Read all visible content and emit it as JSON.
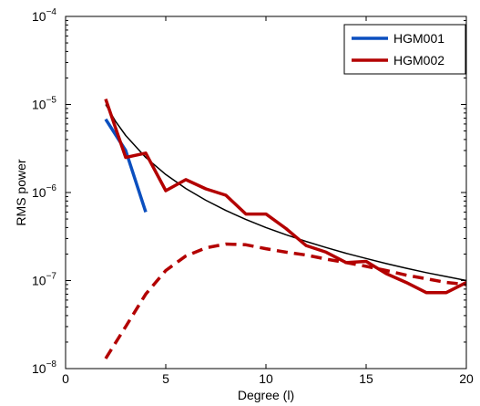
{
  "chart_data": {
    "type": "line",
    "xlabel": "Degree (l)",
    "ylabel": "RMS power",
    "xlim": [
      0,
      20
    ],
    "ylim": [
      1e-08,
      0.0001
    ],
    "yscale": "log",
    "x_ticks": [
      0,
      5,
      10,
      15,
      20
    ],
    "x_tick_labels": [
      "0",
      "5",
      "10",
      "15",
      "20"
    ],
    "y_ticks": [
      1e-08,
      1e-07,
      1e-06,
      1e-05,
      0.0001
    ],
    "y_tick_bases": [
      "10",
      "10",
      "10",
      "10",
      "10"
    ],
    "y_tick_exponents": [
      "−8",
      "−7",
      "−6",
      "−5",
      "−4"
    ],
    "grid": false,
    "legend_position": "top-right",
    "series": [
      {
        "name": "HGM001",
        "color": "#0b4fbf",
        "style": "solid",
        "x": [
          2,
          3,
          4
        ],
        "y": [
          6.8e-06,
          3e-06,
          6e-07
        ]
      },
      {
        "name": "HGM002",
        "color": "#b30000",
        "style": "solid",
        "x": [
          2,
          3,
          4,
          5,
          6,
          7,
          8,
          9,
          10,
          11,
          12,
          13,
          14,
          15,
          16,
          17,
          18,
          19,
          20
        ],
        "y": [
          1.15e-05,
          2.5e-06,
          2.8e-06,
          1.05e-06,
          1.4e-06,
          1.1e-06,
          9.3e-07,
          5.7e-07,
          5.7e-07,
          3.9e-07,
          2.5e-07,
          2.1e-07,
          1.6e-07,
          1.65e-07,
          1.2e-07,
          9.5e-08,
          7.3e-08,
          7.3e-08,
          9.5e-08
        ]
      },
      {
        "color": "#000000",
        "style": "solid",
        "x": [
          2,
          2.5,
          3,
          4,
          5,
          6,
          7,
          8,
          9,
          10,
          11,
          12,
          13,
          14,
          15,
          16,
          17,
          18,
          19,
          20
        ],
        "y": [
          1e-05,
          6.4e-06,
          4.44e-06,
          2.5e-06,
          1.6e-06,
          1.11e-06,
          8.16e-07,
          6.25e-07,
          4.94e-07,
          4e-07,
          3.31e-07,
          2.78e-07,
          2.37e-07,
          2.04e-07,
          1.78e-07,
          1.56e-07,
          1.38e-07,
          1.23e-07,
          1.11e-07,
          1e-07
        ]
      },
      {
        "color": "#b30000",
        "style": "dashed",
        "x": [
          2,
          3,
          4,
          5,
          6,
          7,
          8,
          9,
          10,
          11,
          12,
          13,
          14,
          15,
          16,
          17,
          18,
          19,
          20
        ],
        "y": [
          1.3e-08,
          3e-08,
          7e-08,
          1.3e-07,
          1.9e-07,
          2.35e-07,
          2.6e-07,
          2.55e-07,
          2.3e-07,
          2.1e-07,
          1.95e-07,
          1.75e-07,
          1.6e-07,
          1.45e-07,
          1.3e-07,
          1.15e-07,
          1.05e-07,
          9.5e-08,
          9e-08
        ]
      }
    ]
  }
}
